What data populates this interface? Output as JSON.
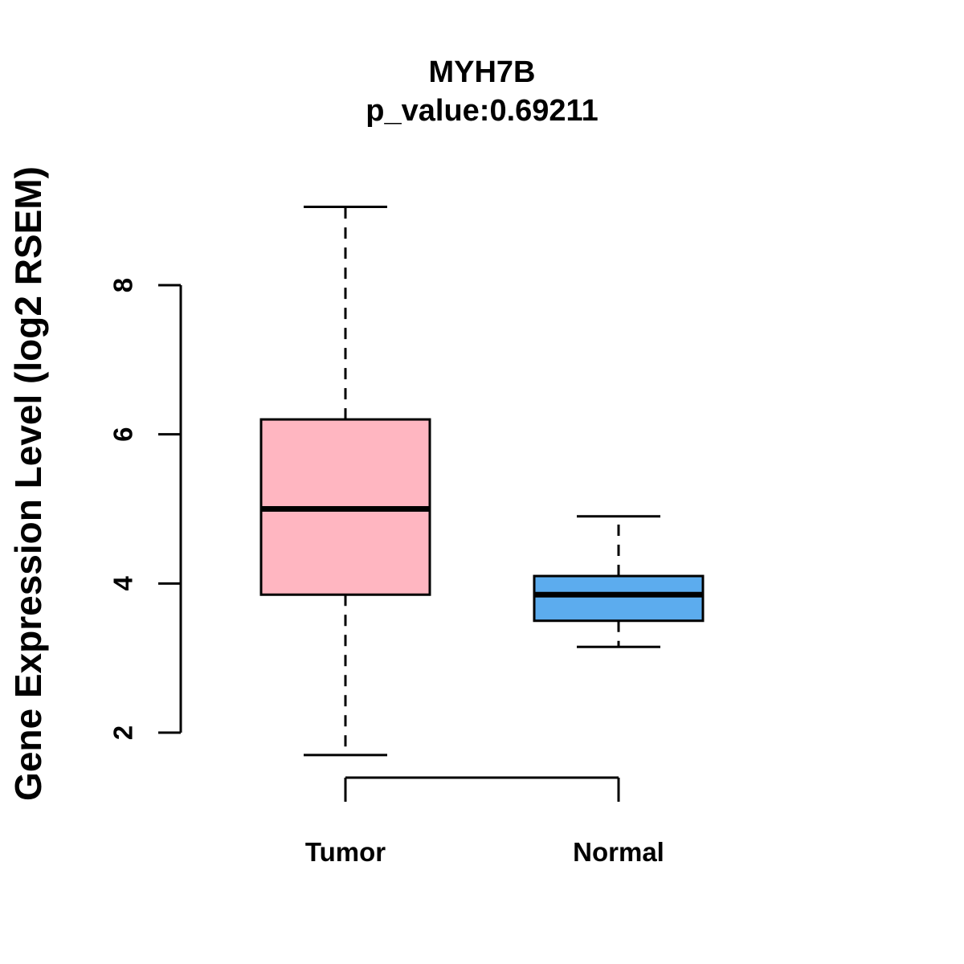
{
  "figure": {
    "title": "MYH7B",
    "subtitle": "p_value:0.69211",
    "ylabel": "Gene Expression Level (log2 RSEM)"
  },
  "chart_data": {
    "type": "boxplot",
    "title": "MYH7B",
    "subtitle": "p_value:0.69211",
    "xlabel": "",
    "ylabel": "Gene Expression Level (log2 RSEM)",
    "categories": [
      "Tumor",
      "Normal"
    ],
    "series": [
      {
        "name": "Tumor",
        "min": 1.7,
        "q1": 3.85,
        "median": 5.0,
        "q3": 6.2,
        "max": 9.05,
        "color": "#FFB6C1"
      },
      {
        "name": "Normal",
        "min": 3.15,
        "q1": 3.5,
        "median": 3.85,
        "q3": 4.1,
        "max": 4.9,
        "color": "#5CACEE"
      }
    ],
    "yticks": [
      2,
      4,
      6,
      8
    ],
    "ylim": [
      1.2,
      9.4
    ],
    "grid": false,
    "legend": "none",
    "box_border_color": "#000000",
    "median_color": "#000000",
    "whisker_style": "dashed",
    "ytick_label_orientation": "rotated-90"
  }
}
